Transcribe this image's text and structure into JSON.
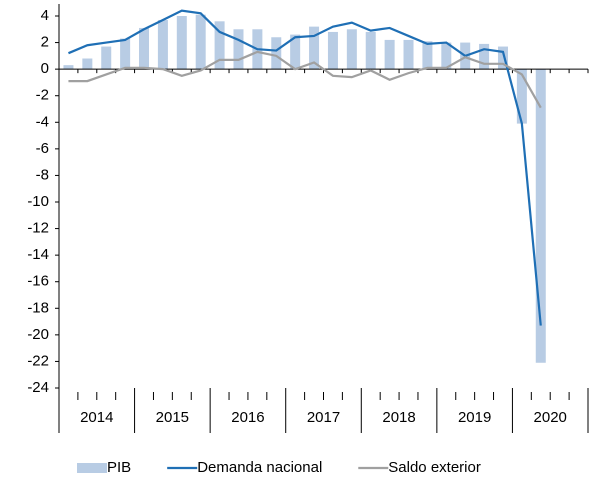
{
  "chart_data": {
    "type": "bar_line",
    "categories": [
      null,
      null,
      null,
      null,
      null,
      null,
      null,
      null,
      null,
      null,
      null,
      null,
      null,
      null,
      null,
      null,
      null,
      null,
      null,
      null,
      null,
      null,
      null,
      null,
      null,
      null,
      null,
      null
    ],
    "year_labels": [
      "2014",
      "2015",
      "2016",
      "2017",
      "2018",
      "2019",
      "2020"
    ],
    "series": [
      {
        "name": "PIB",
        "kind": "bar",
        "color": "#b8cce4",
        "values": [
          0.3,
          0.8,
          1.7,
          2.3,
          3.1,
          3.7,
          4.0,
          4.1,
          3.6,
          3.0,
          3.0,
          2.4,
          2.6,
          3.2,
          2.8,
          3.0,
          2.8,
          2.2,
          2.2,
          2.1,
          2.0,
          2.0,
          1.9,
          1.7,
          -4.1,
          -22.1,
          null,
          null
        ]
      },
      {
        "name": "Demanda nacional",
        "kind": "line",
        "color": "#1f6fb5",
        "values": [
          1.2,
          1.8,
          2.0,
          2.2,
          3.0,
          3.7,
          4.4,
          4.2,
          2.8,
          2.2,
          1.5,
          1.4,
          2.4,
          2.5,
          3.2,
          3.5,
          2.9,
          3.1,
          2.5,
          1.9,
          2.0,
          1.0,
          1.5,
          1.3,
          -4.1,
          -19.3,
          null,
          null
        ]
      },
      {
        "name": "Saldo exterior",
        "kind": "line",
        "color": "#a0a0a0",
        "values": [
          -0.9,
          -0.9,
          -0.4,
          0.1,
          0.1,
          0.0,
          -0.5,
          -0.1,
          0.7,
          0.7,
          1.3,
          1.0,
          0.0,
          0.5,
          -0.5,
          -0.6,
          -0.1,
          -0.8,
          -0.3,
          0.1,
          0.1,
          0.9,
          0.4,
          0.4,
          -0.4,
          -2.9,
          null,
          null
        ]
      }
    ],
    "ylim": [
      -24,
      4
    ],
    "yticks": [
      4,
      2,
      0,
      -2,
      -4,
      -6,
      -8,
      -10,
      -12,
      -14,
      -16,
      -18,
      -20,
      -22,
      -24
    ],
    "legend": "bottom"
  }
}
